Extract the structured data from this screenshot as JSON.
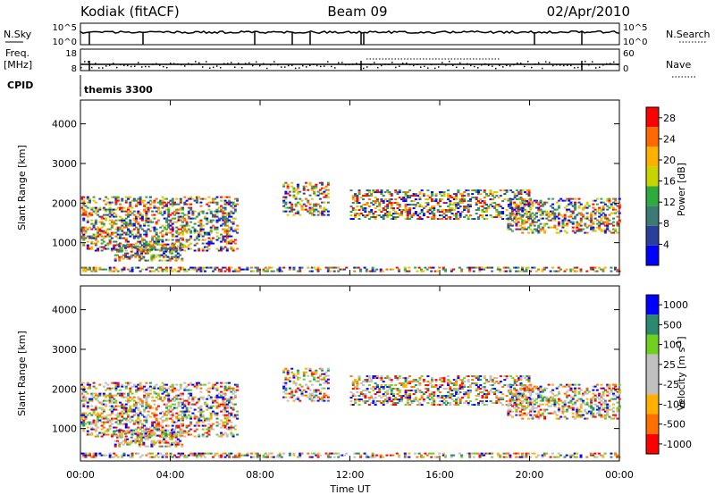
{
  "header": {
    "station": "Kodiak (fitACF)",
    "beam": "Beam 09",
    "date": "02/Apr/2010"
  },
  "status_panels": {
    "nsky_label": "N.Sky",
    "nsky_ticks": [
      "10^5",
      "10^0"
    ],
    "nsearch_label": "N.Search",
    "nsearch_ticks": [
      "10^5",
      "10^0"
    ],
    "freq_label": "Freq.",
    "freq_unit": "[MHz]",
    "freq_ticks": [
      "18",
      "8"
    ],
    "nave_label": "Nave",
    "nave_ticks": [
      "60",
      "0"
    ],
    "cpid_label": "CPID",
    "cpid_value": "themis 3300"
  },
  "colors": {
    "power_scale": [
      "#0000ff",
      "#2a3f9c",
      "#3c7a74",
      "#2faa3c",
      "#c8d400",
      "#ffb000",
      "#ff6a00",
      "#ff0000"
    ],
    "velocity_scale": [
      "#ff0000",
      "#ff7000",
      "#ffb000",
      "#c0c0c0",
      "#c0c0c0",
      "#70d020",
      "#2a8a70",
      "#0000ff"
    ]
  },
  "chart_data": [
    {
      "type": "heatmap",
      "name": "power",
      "xlabel": "Time UT",
      "ylabel": "Slant Range [km]",
      "x_range_hours": [
        0,
        24
      ],
      "y_range_km": [
        180,
        4600
      ],
      "x_ticks": [
        "00:00",
        "04:00",
        "08:00",
        "12:00",
        "16:00",
        "20:00",
        "00:00"
      ],
      "y_ticks": [
        1000,
        2000,
        3000,
        4000
      ],
      "colorbar_label": "Power [dB]",
      "colorbar_ticks": [
        4,
        8,
        12,
        16,
        20,
        24,
        28
      ],
      "colorbar_range": [
        0,
        30
      ],
      "echo_bands": [
        {
          "t0": 0.0,
          "t1": 7.0,
          "r0": 800,
          "r1": 2150
        },
        {
          "t0": 0.0,
          "t1": 24.0,
          "r0": 280,
          "r1": 380
        },
        {
          "t0": 1.5,
          "t1": 4.5,
          "r0": 550,
          "r1": 950
        },
        {
          "t0": 9.0,
          "t1": 11.0,
          "r0": 1700,
          "r1": 2500
        },
        {
          "t0": 12.0,
          "t1": 20.0,
          "r0": 1600,
          "r1": 2300
        },
        {
          "t0": 19.0,
          "t1": 24.0,
          "r0": 1250,
          "r1": 2100
        }
      ]
    },
    {
      "type": "heatmap",
      "name": "velocity",
      "xlabel": "Time UT",
      "ylabel": "Slant Range [km]",
      "x_range_hours": [
        0,
        24
      ],
      "y_range_km": [
        180,
        4600
      ],
      "x_ticks": [
        "00:00",
        "04:00",
        "08:00",
        "12:00",
        "16:00",
        "20:00",
        "00:00"
      ],
      "y_ticks": [
        1000,
        2000,
        3000,
        4000
      ],
      "colorbar_label": "Velocity [m s^-1]",
      "colorbar_ticks": [
        "1000",
        "500",
        "100",
        "25",
        "-25",
        "-100",
        "-500",
        "-1000"
      ]
    }
  ]
}
